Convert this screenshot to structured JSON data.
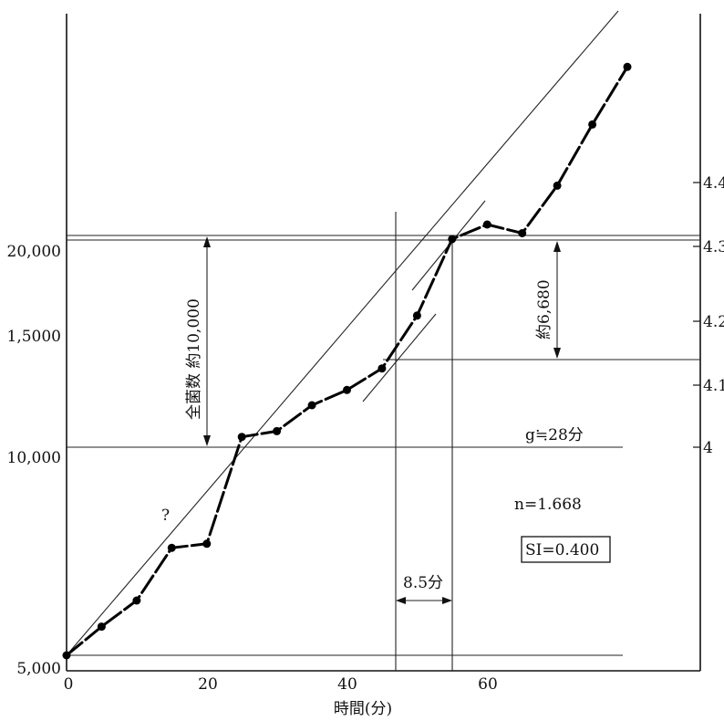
{
  "chart_data": {
    "type": "scatter",
    "xlabel": "時間(分)",
    "x_ticks": [
      0,
      20,
      40,
      60
    ],
    "xlim": [
      0,
      80
    ],
    "y_left_ticks": [
      {
        "value": 5000,
        "label": "5,000"
      },
      {
        "value": 10000,
        "label": "10,000"
      },
      {
        "value": 15000,
        "label": "1,5000"
      },
      {
        "value": 20000,
        "label": "20,000"
      }
    ],
    "y_scale": "log",
    "ylim": [
      5000,
      41000
    ],
    "y_right_ticks": [
      4.0,
      4.1,
      4.2,
      4.3,
      4.4
    ],
    "y_right_scale": "log10",
    "series": [
      {
        "points": [
          [
            0,
            5000
          ],
          [
            5,
            5500
          ],
          [
            10,
            6000
          ],
          [
            15,
            7150
          ],
          [
            20,
            7250
          ],
          [
            25,
            10350
          ],
          [
            30,
            10550
          ],
          [
            35,
            11500
          ],
          [
            40,
            12100
          ],
          [
            45,
            13000
          ],
          [
            50,
            15500
          ],
          [
            55,
            20000
          ],
          [
            60,
            21000
          ],
          [
            65,
            20400
          ],
          [
            70,
            23900
          ],
          [
            75,
            29300
          ],
          [
            80,
            35500
          ]
        ]
      }
    ],
    "annotations": {
      "bracket_left": "全菌数 約10,000",
      "bracket_right": "約6,680",
      "generation": "g≒28分",
      "n_value": "n=1.668",
      "si_value": "SI=0.400",
      "interval": "8.5分",
      "question": "?"
    }
  }
}
